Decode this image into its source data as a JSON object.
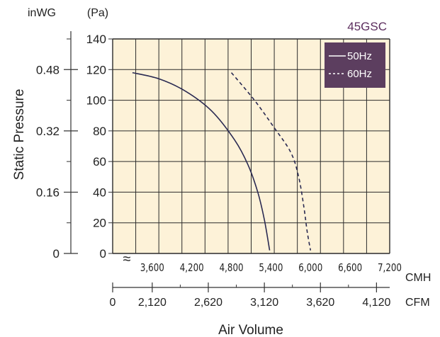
{
  "chart_data": {
    "type": "line",
    "title": "45GSC",
    "ylabel": "Static Pressure",
    "xlabel": "Air Volume",
    "y_unit_primary": "(Pa)",
    "y_unit_secondary": "inWG",
    "x_unit_primary": "CMH",
    "x_unit_secondary": "CFM",
    "break_symbol": "≈",
    "xlim": [
      3000,
      7200
    ],
    "ylim": [
      0,
      140
    ],
    "x_ticks": [
      3600,
      4200,
      4800,
      5400,
      6000,
      6600,
      7200
    ],
    "x_tick_labels": [
      "3,600",
      "4,200",
      "4,800",
      "5,400",
      "6,000",
      "6,600",
      "7,200"
    ],
    "y_ticks": [
      0,
      20,
      40,
      60,
      80,
      100,
      120,
      140
    ],
    "y_tick_labels": [
      "0",
      "20",
      "40",
      "60",
      "80",
      "100",
      "120",
      "140"
    ],
    "inwg_ticks": [
      {
        "label": "0",
        "pa": 0
      },
      {
        "label": "0.16",
        "pa": 40
      },
      {
        "label": "0.32",
        "pa": 80
      },
      {
        "label": "0.48",
        "pa": 120
      }
    ],
    "cfm_ticks": [
      {
        "label": "0",
        "cmh": 3000
      },
      {
        "label": "2,120",
        "cmh": 3600
      },
      {
        "label": "2,620",
        "cmh": 4450
      },
      {
        "label": "3,120",
        "cmh": 5300
      },
      {
        "label": "3,620",
        "cmh": 6150
      },
      {
        "label": "4,120",
        "cmh": 7000
      }
    ],
    "grid": true,
    "legend_position": "top-right",
    "series": [
      {
        "name": "50Hz",
        "style": "solid",
        "color": "#2a2a52",
        "points": [
          [
            3300,
            118
          ],
          [
            3700,
            114
          ],
          [
            4100,
            106
          ],
          [
            4500,
            93
          ],
          [
            4850,
            74
          ],
          [
            5050,
            58
          ],
          [
            5200,
            40
          ],
          [
            5300,
            22
          ],
          [
            5380,
            2
          ]
        ]
      },
      {
        "name": "60Hz",
        "style": "dashed",
        "color": "#2a2a52",
        "points": [
          [
            4800,
            118
          ],
          [
            5150,
            100
          ],
          [
            5450,
            82
          ],
          [
            5700,
            66
          ],
          [
            5820,
            50
          ],
          [
            5900,
            30
          ],
          [
            5950,
            14
          ],
          [
            6000,
            2
          ]
        ]
      }
    ],
    "colors": {
      "plot_bg": "#fdf2d8",
      "grid": "#2b2b2b",
      "title": "#5c2e5e",
      "legend_bg": "#5c3e5f",
      "legend_text": "#ffffff"
    }
  }
}
